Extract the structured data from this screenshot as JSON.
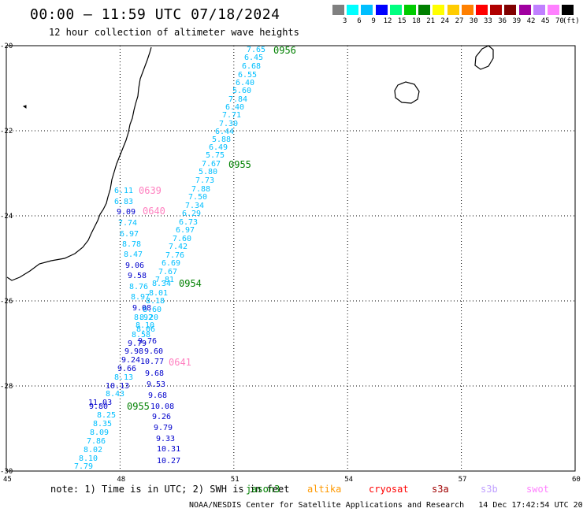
{
  "title": "00:00 — 11:59 UTC 07/18/2024",
  "subtitle": "12 hour collection of altimeter wave heights",
  "legend": {
    "unit": "(ft)",
    "colors": [
      "#808080",
      "#00ffff",
      "#00bfff",
      "#0000ff",
      "#00ff80",
      "#00cc00",
      "#008000",
      "#ffff00",
      "#ffcc00",
      "#ff8000",
      "#ff0000",
      "#b00000",
      "#800000",
      "#a000a0",
      "#c080ff",
      "#ff80ff",
      "#000000"
    ],
    "labels": [
      "3",
      "6",
      "9",
      "12",
      "15",
      "18",
      "21",
      "24",
      "27",
      "30",
      "33",
      "36",
      "39",
      "42",
      "45",
      "70"
    ]
  },
  "axes": {
    "x_ticks": [
      "45",
      "48",
      "51",
      "54",
      "57",
      "60"
    ],
    "y_ticks": [
      "-20",
      "-22",
      "-24",
      "-26",
      "-28",
      "-30"
    ]
  },
  "passes": [
    {
      "label": "0956",
      "color": "#008000"
    },
    {
      "label": "0955",
      "color": "#008000"
    },
    {
      "label": "0954",
      "color": "#008000"
    },
    {
      "label": "0955",
      "color": "#008000"
    },
    {
      "label": "0639",
      "color": "#ff80c0"
    },
    {
      "label": "0640",
      "color": "#ff80c0"
    },
    {
      "label": "0641",
      "color": "#ff80c0"
    }
  ],
  "wave_heights": [
    {
      "v": "7.65",
      "c": "#00bfff"
    },
    {
      "v": "6.45",
      "c": "#00bfff"
    },
    {
      "v": "6.68",
      "c": "#00bfff"
    },
    {
      "v": "6.55",
      "c": "#00bfff"
    },
    {
      "v": "6.40",
      "c": "#00bfff"
    },
    {
      "v": "5.60",
      "c": "#00bfff"
    },
    {
      "v": "7.84",
      "c": "#00bfff"
    },
    {
      "v": "6.40",
      "c": "#00bfff"
    },
    {
      "v": "7.71",
      "c": "#00bfff"
    },
    {
      "v": "7.30",
      "c": "#00bfff"
    },
    {
      "v": "6.44",
      "c": "#00bfff"
    },
    {
      "v": "5.88",
      "c": "#00bfff"
    },
    {
      "v": "6.49",
      "c": "#00bfff"
    },
    {
      "v": "5.75",
      "c": "#00bfff"
    },
    {
      "v": "7.67",
      "c": "#00bfff"
    },
    {
      "v": "5.80",
      "c": "#00bfff"
    },
    {
      "v": "7.73",
      "c": "#00bfff"
    },
    {
      "v": "7.88",
      "c": "#00bfff"
    },
    {
      "v": "7.50",
      "c": "#00bfff"
    },
    {
      "v": "7.34",
      "c": "#00bfff"
    },
    {
      "v": "6.29",
      "c": "#00bfff"
    },
    {
      "v": "6.73",
      "c": "#00bfff"
    },
    {
      "v": "6.97",
      "c": "#00bfff"
    },
    {
      "v": "7.60",
      "c": "#00bfff"
    },
    {
      "v": "7.42",
      "c": "#00bfff"
    },
    {
      "v": "7.76",
      "c": "#00bfff"
    },
    {
      "v": "6.69",
      "c": "#00bfff"
    },
    {
      "v": "7.67",
      "c": "#00bfff"
    },
    {
      "v": "7.81",
      "c": "#00bfff"
    },
    {
      "v": "8.34",
      "c": "#00bfff"
    },
    {
      "v": "8.01",
      "c": "#00bfff"
    },
    {
      "v": "8.18",
      "c": "#00bfff"
    },
    {
      "v": "8.60",
      "c": "#00bfff"
    },
    {
      "v": "8.20",
      "c": "#00bfff"
    },
    {
      "v": "8.06",
      "c": "#00bfff"
    },
    {
      "v": "6.11",
      "c": "#00bfff"
    },
    {
      "v": "6.83",
      "c": "#00bfff"
    },
    {
      "v": "9.09",
      "c": "#0000cc"
    },
    {
      "v": "7.74",
      "c": "#00bfff"
    },
    {
      "v": "6.97",
      "c": "#00bfff"
    },
    {
      "v": "8.78",
      "c": "#00bfff"
    },
    {
      "v": "8.47",
      "c": "#00bfff"
    },
    {
      "v": "9.06",
      "c": "#0000cc"
    },
    {
      "v": "9.58",
      "c": "#0000cc"
    },
    {
      "v": "8.76",
      "c": "#00bfff"
    },
    {
      "v": "8.97",
      "c": "#00bfff"
    },
    {
      "v": "9.08",
      "c": "#0000cc"
    },
    {
      "v": "8.92",
      "c": "#00bfff"
    },
    {
      "v": "8.10",
      "c": "#00bfff"
    },
    {
      "v": "8.58",
      "c": "#00bfff"
    },
    {
      "v": "9.76",
      "c": "#0000cc"
    },
    {
      "v": "9.79",
      "c": "#0000cc"
    },
    {
      "v": "9.98",
      "c": "#0000cc"
    },
    {
      "v": "9.60",
      "c": "#0000cc"
    },
    {
      "v": "9.24",
      "c": "#0000cc"
    },
    {
      "v": "10.77",
      "c": "#0000cc"
    },
    {
      "v": "9.66",
      "c": "#0000cc"
    },
    {
      "v": "9.68",
      "c": "#0000cc"
    },
    {
      "v": "8.13",
      "c": "#00bfff"
    },
    {
      "v": "10.13",
      "c": "#0000cc"
    },
    {
      "v": "9.53",
      "c": "#0000cc"
    },
    {
      "v": "8.43",
      "c": "#00bfff"
    },
    {
      "v": "9.68",
      "c": "#0000cc"
    },
    {
      "v": "11.03",
      "c": "#0000cc"
    },
    {
      "v": "9.80",
      "c": "#0000cc"
    },
    {
      "v": "10.08",
      "c": "#0000cc"
    },
    {
      "v": "8.25",
      "c": "#00bfff"
    },
    {
      "v": "9.26",
      "c": "#0000cc"
    },
    {
      "v": "8.35",
      "c": "#00bfff"
    },
    {
      "v": "9.79",
      "c": "#0000cc"
    },
    {
      "v": "8.09",
      "c": "#00bfff"
    },
    {
      "v": "9.33",
      "c": "#0000cc"
    },
    {
      "v": "7.86",
      "c": "#00bfff"
    },
    {
      "v": "10.31",
      "c": "#0000cc"
    },
    {
      "v": "8.02",
      "c": "#00bfff"
    },
    {
      "v": "8.10",
      "c": "#00bfff"
    },
    {
      "v": "10.27",
      "c": "#0000cc"
    },
    {
      "v": "7.79",
      "c": "#00bfff"
    }
  ],
  "footer": {
    "note": "note: 1) Time is in UTC; 2) SWH is in feet",
    "satellites": [
      {
        "name": "jason3",
        "color": "#008000"
      },
      {
        "name": "altika",
        "color": "#ff9900"
      },
      {
        "name": "cryosat",
        "color": "#ff0000"
      },
      {
        "name": "s3a",
        "color": "#a00000"
      },
      {
        "name": "s3b",
        "color": "#c0a0ff"
      },
      {
        "name": "swot",
        "color": "#ff80ff"
      }
    ],
    "credit": "NOAA/NESDIS Center for Satellite Applications and Research   14 Dec 17:42:54 UTC 2024"
  }
}
